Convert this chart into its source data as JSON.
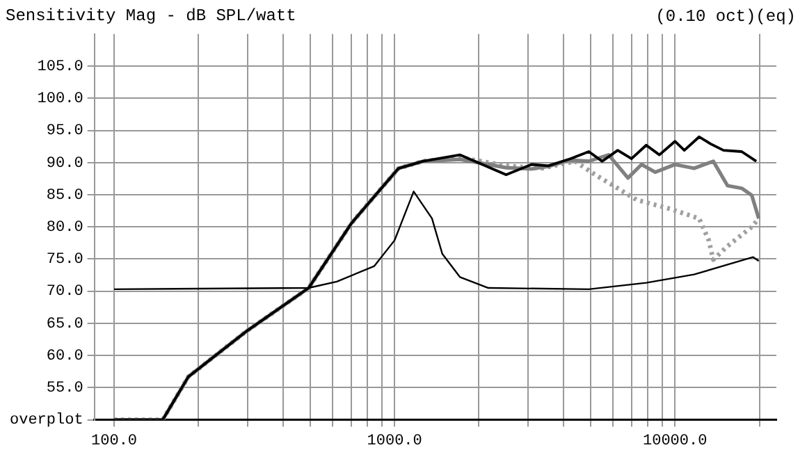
{
  "chart_data": {
    "type": "line",
    "title": "Sensitivity Mag - dB SPL/watt",
    "annotations": [
      "(0.10 oct)(eq)"
    ],
    "xlim": [
      85,
      23000
    ],
    "ylim": [
      50,
      110
    ],
    "log": "x",
    "grid": true,
    "legend": false,
    "marker": "none",
    "xticks": [
      {
        "value": 100,
        "label": "100.0"
      },
      {
        "value": 200,
        "label": null
      },
      {
        "value": 300,
        "label": null
      },
      {
        "value": 400,
        "label": null
      },
      {
        "value": 500,
        "label": null
      },
      {
        "value": 600,
        "label": null
      },
      {
        "value": 700,
        "label": null
      },
      {
        "value": 800,
        "label": null
      },
      {
        "value": 900,
        "label": null
      },
      {
        "value": 1000,
        "label": "1000.0"
      },
      {
        "value": 2000,
        "label": null
      },
      {
        "value": 3000,
        "label": null
      },
      {
        "value": 4000,
        "label": null
      },
      {
        "value": 5000,
        "label": null
      },
      {
        "value": 6000,
        "label": null
      },
      {
        "value": 7000,
        "label": null
      },
      {
        "value": 8000,
        "label": null
      },
      {
        "value": 9000,
        "label": null
      },
      {
        "value": 10000,
        "label": "10000.0"
      },
      {
        "value": 20000,
        "label": null
      }
    ],
    "yticks": [
      {
        "value": 50,
        "label": "overplot"
      },
      {
        "value": 55,
        "label": "55.0"
      },
      {
        "value": 60,
        "label": "60.0"
      },
      {
        "value": 65,
        "label": "65.0"
      },
      {
        "value": 70,
        "label": "70.0"
      },
      {
        "value": 75,
        "label": "75.0"
      },
      {
        "value": 80,
        "label": "80.0"
      },
      {
        "value": 85,
        "label": "85.0"
      },
      {
        "value": 90,
        "label": "90.0"
      },
      {
        "value": 95,
        "label": "95.0"
      },
      {
        "value": 100,
        "label": "100.0"
      },
      {
        "value": 105,
        "label": "105.0"
      }
    ],
    "series": [
      {
        "color": "#a0a0a0",
        "line_style": "dotted",
        "x": [
          100,
          149,
          184,
          295,
          494,
          703,
          922,
          1034,
          1262,
          1713,
          2500,
          3360,
          4400,
          5200,
          6250,
          7300,
          9600,
          12200,
          13200,
          13700,
          15400,
          18800,
          19900
        ],
        "values": [
          50,
          50,
          56.7,
          63.7,
          70.5,
          80.6,
          86.6,
          89.1,
          90.2,
          90.8,
          89.5,
          89.1,
          90.2,
          88.1,
          86,
          84.2,
          82.8,
          81.3,
          77.9,
          74.9,
          77,
          80,
          81.3
        ]
      },
      {
        "color": "#808080",
        "line_style": "solid",
        "x": [
          100,
          149,
          184,
          295,
          494,
          703,
          922,
          1034,
          1262,
          1713,
          2500,
          3080,
          3540,
          4240,
          4930,
          5800,
          6800,
          7600,
          8500,
          10000,
          11700,
          13700,
          15400,
          17300,
          18800,
          19900
        ],
        "values": [
          50,
          50,
          56.7,
          63.7,
          70.5,
          80.6,
          86.6,
          89.1,
          90.2,
          90.5,
          89.2,
          89.0,
          89.4,
          90.4,
          90.2,
          91.2,
          87.6,
          89.7,
          88.5,
          89.7,
          89.1,
          90.2,
          86.4,
          86,
          84.9,
          81.3
        ]
      },
      {
        "color": "#000000",
        "line_style": "solid",
        "x": [
          100,
          149,
          184,
          295,
          494,
          703,
          922,
          1034,
          1262,
          1713,
          2500,
          3080,
          3540,
          4240,
          4930,
          5500,
          6250,
          7000,
          7900,
          8800,
          10000,
          10800,
          12200,
          13400,
          14900,
          17300,
          19500
        ],
        "values": [
          50,
          50,
          56.7,
          63.7,
          70.5,
          80.6,
          86.6,
          89.1,
          90.2,
          91.2,
          88.1,
          89.7,
          89.5,
          90.6,
          91.7,
          90.2,
          91.9,
          90.6,
          92.7,
          91.2,
          93.3,
          91.9,
          94.0,
          92.9,
          91.9,
          91.7,
          90.2
        ]
      },
      {
        "color": "#000000",
        "line_style": "solid",
        "x": [
          100,
          494,
          623,
          847,
          1000,
          1170,
          1360,
          1480,
          1710,
          2160,
          4930,
          7900,
          11700,
          19000,
          19900
        ],
        "values": [
          70.3,
          70.5,
          71.5,
          73.9,
          77.9,
          85.5,
          81.3,
          75.8,
          72.2,
          70.5,
          70.3,
          71.3,
          72.6,
          75.3,
          74.7
        ]
      }
    ]
  }
}
